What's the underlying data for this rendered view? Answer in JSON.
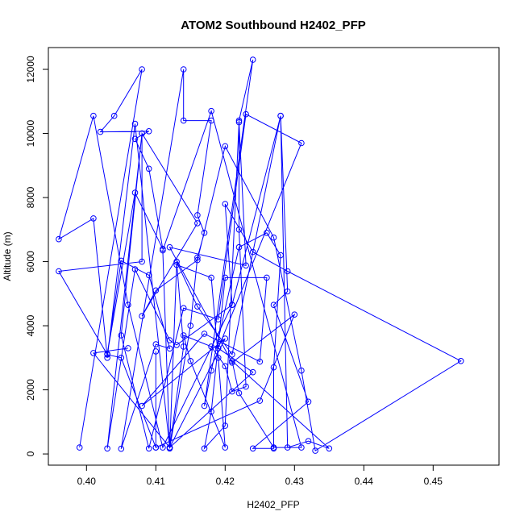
{
  "chart_data": {
    "type": "line",
    "title": "ATOM2 Southbound H2402_PFP",
    "xlabel": "H2402_PFP",
    "ylabel": "Altitude (m)",
    "xlim": [
      0.3945,
      0.4595
    ],
    "ylim": [
      -350,
      12680
    ],
    "x_ticks": [
      0.4,
      0.41,
      0.42,
      0.43,
      0.44,
      0.45
    ],
    "x_tick_labels": [
      "0.40",
      "0.41",
      "0.42",
      "0.43",
      "0.44",
      "0.45"
    ],
    "y_ticks": [
      0,
      2000,
      4000,
      6000,
      8000,
      10000,
      12000
    ],
    "y_tick_labels": [
      "0",
      "2000",
      "4000",
      "6000",
      "8000",
      "10000",
      "12000"
    ],
    "grid": false,
    "series": [
      {
        "color": "#0000ff",
        "marker": "open-circle",
        "points": [
          [
            0.399,
            200
          ],
          [
            0.408,
            12000
          ],
          [
            0.404,
            10550
          ],
          [
            0.402,
            10050
          ],
          [
            0.409,
            10070
          ],
          [
            0.407,
            9830
          ],
          [
            0.409,
            8900
          ],
          [
            0.411,
            6400
          ],
          [
            0.407,
            8150
          ],
          [
            0.403,
            3120
          ],
          [
            0.405,
            6030
          ],
          [
            0.409,
            5580
          ],
          [
            0.412,
            3290
          ],
          [
            0.41,
            3420
          ],
          [
            0.405,
            160
          ],
          [
            0.414,
            12000
          ],
          [
            0.414,
            10400
          ],
          [
            0.418,
            10400
          ],
          [
            0.416,
            7450
          ],
          [
            0.417,
            6900
          ],
          [
            0.416,
            6130
          ],
          [
            0.415,
            4000
          ],
          [
            0.412,
            170
          ],
          [
            0.413,
            5900
          ],
          [
            0.418,
            5500
          ],
          [
            0.419,
            3000
          ],
          [
            0.42,
            200
          ],
          [
            0.415,
            2900
          ],
          [
            0.414,
            3700
          ],
          [
            0.418,
            3350
          ],
          [
            0.42,
            2740
          ],
          [
            0.421,
            1950
          ],
          [
            0.423,
            2100
          ],
          [
            0.422,
            7000
          ],
          [
            0.422,
            10400
          ],
          [
            0.424,
            12300
          ],
          [
            0.417,
            1500
          ],
          [
            0.418,
            2600
          ],
          [
            0.422,
            6450
          ],
          [
            0.426,
            6900
          ],
          [
            0.428,
            6200
          ],
          [
            0.427,
            2700
          ],
          [
            0.427,
            170
          ],
          [
            0.424,
            170
          ],
          [
            0.432,
            1630
          ],
          [
            0.427,
            4650
          ],
          [
            0.429,
            5070
          ],
          [
            0.428,
            10550
          ],
          [
            0.421,
            4650
          ],
          [
            0.42,
            7800
          ],
          [
            0.424,
            6300
          ],
          [
            0.429,
            5700
          ],
          [
            0.454,
            2900
          ],
          [
            0.433,
            100
          ],
          [
            0.431,
            2600
          ],
          [
            0.427,
            6750
          ],
          [
            0.42,
            9600
          ],
          [
            0.416,
            6050
          ],
          [
            0.41,
            5100
          ],
          [
            0.408,
            4300
          ],
          [
            0.416,
            7200
          ],
          [
            0.408,
            10000
          ],
          [
            0.405,
            3700
          ],
          [
            0.409,
            170
          ],
          [
            0.414,
            4550
          ],
          [
            0.419,
            4200
          ],
          [
            0.423,
            10600
          ],
          [
            0.431,
            9700
          ],
          [
            0.419,
            3300
          ],
          [
            0.424,
            2550
          ],
          [
            0.412,
            200
          ],
          [
            0.407,
            10300
          ],
          [
            0.403,
            3000
          ],
          [
            0.401,
            7350
          ],
          [
            0.396,
            6700
          ],
          [
            0.401,
            10550
          ],
          [
            0.406,
            4650
          ],
          [
            0.411,
            200
          ],
          [
            0.421,
            4650
          ],
          [
            0.413,
            3400
          ],
          [
            0.412,
            3550
          ],
          [
            0.407,
            5760
          ],
          [
            0.403,
            170
          ],
          [
            0.408,
            10000
          ],
          [
            0.408,
            6000
          ],
          [
            0.396,
            5700
          ],
          [
            0.403,
            3100
          ],
          [
            0.405,
            3000
          ],
          [
            0.41,
            200
          ],
          [
            0.41,
            3200
          ],
          [
            0.41,
            200
          ],
          [
            0.425,
            1660
          ],
          [
            0.43,
            4350
          ],
          [
            0.421,
            2850
          ],
          [
            0.412,
            6450
          ],
          [
            0.423,
            5880
          ],
          [
            0.422,
            10350
          ],
          [
            0.42,
            880
          ],
          [
            0.417,
            170
          ],
          [
            0.418,
            1320
          ],
          [
            0.42,
            5500
          ],
          [
            0.426,
            5500
          ],
          [
            0.425,
            2880
          ],
          [
            0.417,
            3750
          ],
          [
            0.408,
            1500
          ],
          [
            0.42,
            3600
          ],
          [
            0.412,
            200
          ],
          [
            0.414,
            3350
          ],
          [
            0.413,
            6000
          ],
          [
            0.416,
            4600
          ],
          [
            0.421,
            3100
          ],
          [
            0.428,
            10550
          ],
          [
            0.429,
            200
          ],
          [
            0.432,
            400
          ],
          [
            0.435,
            170
          ],
          [
            0.421,
            2900
          ],
          [
            0.422,
            1900
          ],
          [
            0.427,
            200
          ],
          [
            0.431,
            200
          ],
          [
            0.418,
            10700
          ],
          [
            0.411,
            6350
          ],
          [
            0.412,
            200
          ],
          [
            0.401,
            3150
          ],
          [
            0.406,
            3300
          ]
        ]
      }
    ]
  }
}
